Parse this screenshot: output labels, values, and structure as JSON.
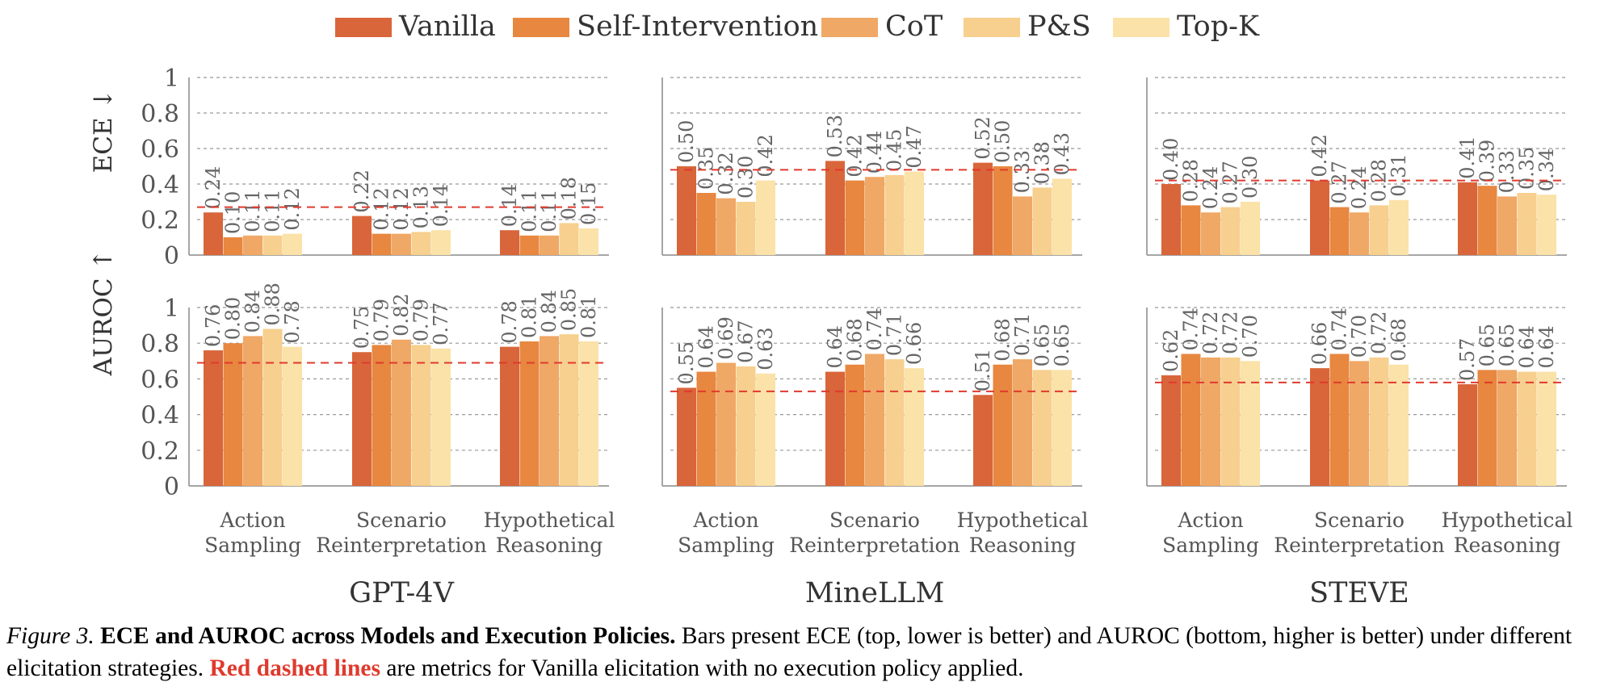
{
  "legend": [
    {
      "name": "Vanilla",
      "color": "#d9653a"
    },
    {
      "name": "Self-Intervention",
      "color": "#e8873f"
    },
    {
      "name": "CoT",
      "color": "#f0a866"
    },
    {
      "name": "P&S",
      "color": "#f7cf8e"
    },
    {
      "name": "Top-K",
      "color": "#fae2a8"
    }
  ],
  "baseline_color": "#e03a2d",
  "chart_data": {
    "type": "bar",
    "series": [
      "Vanilla",
      "Self-Intervention",
      "CoT",
      "P&S",
      "Top-K"
    ],
    "categories": [
      [
        "Action",
        "Sampling"
      ],
      [
        "Scenario",
        "Reinterpretation"
      ],
      [
        "Hypothetical",
        "Reasoning"
      ]
    ],
    "ylim": [
      0,
      1
    ],
    "yticks": [
      "0",
      "0.2",
      "0.4",
      "0.6",
      "0.8",
      "1"
    ],
    "grid": "horizontal dashed",
    "rows": [
      {
        "ylabel": "ECE ↓"
      },
      {
        "ylabel": "AUROC ↑"
      }
    ],
    "panels": [
      {
        "model": "GPT-4V",
        "ece": {
          "baseline": 0.27,
          "groups": [
            [
              0.24,
              0.1,
              0.11,
              0.11,
              0.12
            ],
            [
              0.22,
              0.12,
              0.12,
              0.13,
              0.14
            ],
            [
              0.14,
              0.11,
              0.11,
              0.18,
              0.15
            ]
          ]
        },
        "auroc": {
          "baseline": 0.69,
          "groups": [
            [
              0.76,
              0.8,
              0.84,
              0.88,
              0.78
            ],
            [
              0.75,
              0.79,
              0.82,
              0.79,
              0.77
            ],
            [
              0.78,
              0.81,
              0.84,
              0.85,
              0.81
            ]
          ]
        }
      },
      {
        "model": "MineLLM",
        "ece": {
          "baseline": 0.48,
          "groups": [
            [
              0.5,
              0.35,
              0.32,
              0.3,
              0.42
            ],
            [
              0.53,
              0.42,
              0.44,
              0.45,
              0.47
            ],
            [
              0.52,
              0.5,
              0.33,
              0.38,
              0.43
            ]
          ]
        },
        "auroc": {
          "baseline": 0.53,
          "groups": [
            [
              0.55,
              0.64,
              0.69,
              0.67,
              0.63
            ],
            [
              0.64,
              0.68,
              0.74,
              0.71,
              0.66
            ],
            [
              0.51,
              0.68,
              0.71,
              0.65,
              0.65
            ]
          ]
        }
      },
      {
        "model": "STEVE",
        "ece": {
          "baseline": 0.42,
          "groups": [
            [
              0.4,
              0.28,
              0.24,
              0.27,
              0.3
            ],
            [
              0.42,
              0.27,
              0.24,
              0.28,
              0.31
            ],
            [
              0.41,
              0.39,
              0.33,
              0.35,
              0.34
            ]
          ]
        },
        "auroc": {
          "baseline": 0.58,
          "groups": [
            [
              0.62,
              0.74,
              0.72,
              0.72,
              0.7
            ],
            [
              0.66,
              0.74,
              0.7,
              0.72,
              0.68
            ],
            [
              0.57,
              0.65,
              0.65,
              0.64,
              0.64
            ]
          ]
        }
      }
    ]
  },
  "caption": {
    "label": "Figure 3.",
    "title": "ECE and AUROC across Models and Execution Policies.",
    "text1": "Bars present ECE (top, lower is better) and AUROC (bottom, higher is better) under different elicitation strategies.",
    "highlight": "Red dashed lines",
    "text2": "are metrics for Vanilla elicitation with no execution policy applied."
  }
}
